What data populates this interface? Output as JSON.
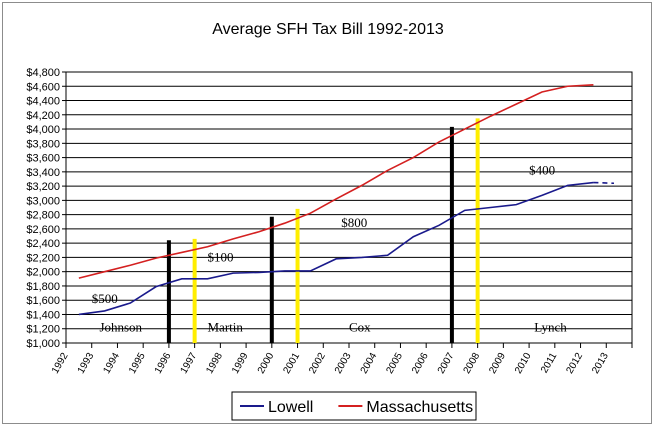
{
  "chart_data": {
    "type": "line",
    "title": "Average SFH Tax Bill 1992-2013",
    "x": [
      1992,
      1993,
      1994,
      1995,
      1996,
      1997,
      1998,
      1999,
      2000,
      2001,
      2002,
      2003,
      2004,
      2005,
      2006,
      2007,
      2008,
      2009,
      2010,
      2011,
      2012,
      2013
    ],
    "x_tick_labels": [
      "1992",
      "1993",
      "1994",
      "1995",
      "1996",
      "1997",
      "1998",
      "1999",
      "2000",
      "2001",
      "2002",
      "2003",
      "2004",
      "2005",
      "2006",
      "2007",
      "2008",
      "2009",
      "2010",
      "2011",
      "2012",
      "2013"
    ],
    "ylim": [
      1000,
      4800
    ],
    "y_tick_values": [
      1000,
      1200,
      1400,
      1600,
      1800,
      2000,
      2200,
      2400,
      2600,
      2800,
      3000,
      3200,
      3400,
      3600,
      3800,
      4000,
      4200,
      4400,
      4600,
      4800
    ],
    "y_tick_labels": [
      "$1,000",
      "$1,200",
      "$1,400",
      "$1,600",
      "$1,800",
      "$2,000",
      "$2,200",
      "$2,400",
      "$2,600",
      "$2,800",
      "$3,000",
      "$3,200",
      "$3,400",
      "$3,600",
      "$3,800",
      "$4,000",
      "$4,200",
      "$4,400",
      "$4,600",
      "$4,800"
    ],
    "grid": "horizontal",
    "legend_position": "bottom",
    "series": [
      {
        "name": "Lowell",
        "color": "#1a1a8c",
        "x": [
          1992.5,
          1993.5,
          1994.5,
          1995.5,
          1996.5,
          1997.5,
          1998.5,
          1999.5,
          2000.5,
          2001.5,
          2002.5,
          2003.5,
          2004.5,
          2005.5,
          2006.5,
          2007.5,
          2008.5,
          2009.5,
          2010.5,
          2011.5,
          2012.5
        ],
        "values": [
          1400,
          1450,
          1560,
          1790,
          1900,
          1900,
          1980,
          1990,
          2010,
          2010,
          2180,
          2200,
          2230,
          2490,
          2650,
          2860,
          2900,
          2940,
          3070,
          3210,
          3250
        ],
        "projection": {
          "x": [
            2012.5,
            2013.3
          ],
          "values": [
            3250,
            3240
          ],
          "style": "dashed"
        }
      },
      {
        "name": "Massachusetts",
        "color": "#d42020",
        "x": [
          1992.5,
          1993.5,
          1994.5,
          1995.5,
          1996.5,
          1997.5,
          1998.5,
          1999.5,
          2000.5,
          2001.5,
          2002.5,
          2003.5,
          2004.5,
          2005.5,
          2006.5,
          2007.5,
          2008.5,
          2009.5,
          2010.5,
          2011.5,
          2012.5
        ],
        "values": [
          1910,
          2000,
          2090,
          2190,
          2270,
          2350,
          2460,
          2560,
          2680,
          2820,
          3020,
          3210,
          3420,
          3600,
          3820,
          4000,
          4180,
          4350,
          4520,
          4600,
          4620
        ]
      }
    ],
    "markers": [
      {
        "x": 1996.0,
        "y_top": 2440,
        "color": "#000000"
      },
      {
        "x": 1997.0,
        "y_top": 2460,
        "color": "#ffee00"
      },
      {
        "x": 2000.0,
        "y_top": 2770,
        "color": "#000000"
      },
      {
        "x": 2001.0,
        "y_top": 2880,
        "color": "#ffee00"
      },
      {
        "x": 2007.0,
        "y_top": 4030,
        "color": "#000000"
      },
      {
        "x": 2008.0,
        "y_top": 4150,
        "color": "#ffee00"
      }
    ],
    "annotations": [
      {
        "text": "$500",
        "x": 1993.0,
        "y": 1560
      },
      {
        "text": "$100",
        "x": 1997.5,
        "y": 2140
      },
      {
        "text": "$800",
        "x": 2002.7,
        "y": 2630
      },
      {
        "text": "$400",
        "x": 2010.0,
        "y": 3360
      },
      {
        "text": "Johnson",
        "x": 1993.3,
        "y": 1160
      },
      {
        "text": "Martin",
        "x": 1997.5,
        "y": 1160
      },
      {
        "text": "Cox",
        "x": 2003.0,
        "y": 1160
      },
      {
        "text": "Lynch",
        "x": 2010.2,
        "y": 1160
      }
    ]
  }
}
